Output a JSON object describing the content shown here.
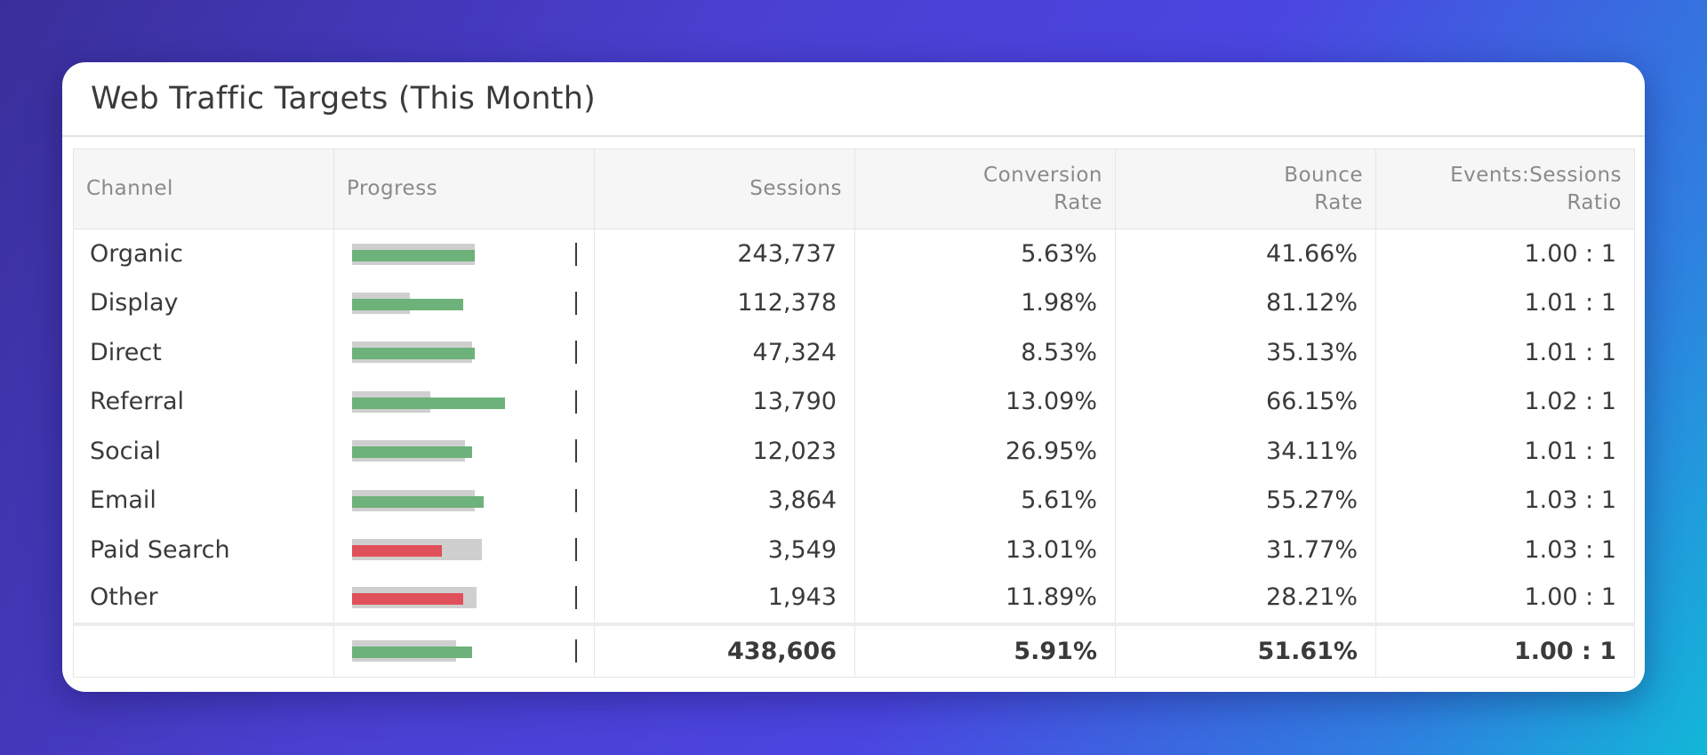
{
  "title": "Web Traffic Targets (This Month)",
  "columns": {
    "channel": "Channel",
    "progress": "Progress",
    "sessions": "Sessions",
    "conversion_1": "Conversion",
    "conversion_2": "Rate",
    "bounce_1": "Bounce",
    "bounce_2": "Rate",
    "ratio_1": "Events:Sessions",
    "ratio_2": "Ratio"
  },
  "colors": {
    "on_track": "#6db27a",
    "below_target": "#e0505a",
    "target_band": "#cfcfcf"
  },
  "rows": [
    {
      "channel": "Organic",
      "sessions": "243,737",
      "conversion_rate": "5.63%",
      "bounce_rate": "41.66%",
      "ratio": "1.00 : 1",
      "progress": {
        "target": 0.53,
        "actual": 0.53,
        "status": "on_track"
      }
    },
    {
      "channel": "Display",
      "sessions": "112,378",
      "conversion_rate": "1.98%",
      "bounce_rate": "81.12%",
      "ratio": "1.01 : 1",
      "progress": {
        "target": 0.25,
        "actual": 0.48,
        "status": "on_track"
      }
    },
    {
      "channel": "Direct",
      "sessions": "47,324",
      "conversion_rate": "8.53%",
      "bounce_rate": "35.13%",
      "ratio": "1.01 : 1",
      "progress": {
        "target": 0.52,
        "actual": 0.53,
        "status": "on_track"
      }
    },
    {
      "channel": "Referral",
      "sessions": "13,790",
      "conversion_rate": "13.09%",
      "bounce_rate": "66.15%",
      "ratio": "1.02 : 1",
      "progress": {
        "target": 0.34,
        "actual": 0.66,
        "status": "on_track"
      }
    },
    {
      "channel": "Social",
      "sessions": "12,023",
      "conversion_rate": "26.95%",
      "bounce_rate": "34.11%",
      "ratio": "1.01 : 1",
      "progress": {
        "target": 0.49,
        "actual": 0.52,
        "status": "on_track"
      }
    },
    {
      "channel": "Email",
      "sessions": "3,864",
      "conversion_rate": "5.61%",
      "bounce_rate": "55.27%",
      "ratio": "1.03 : 1",
      "progress": {
        "target": 0.53,
        "actual": 0.57,
        "status": "on_track"
      }
    },
    {
      "channel": "Paid Search",
      "sessions": "3,549",
      "conversion_rate": "13.01%",
      "bounce_rate": "31.77%",
      "ratio": "1.03 : 1",
      "progress": {
        "target": 0.56,
        "actual": 0.39,
        "status": "below_target"
      }
    },
    {
      "channel": "Other",
      "sessions": "1,943",
      "conversion_rate": "11.89%",
      "bounce_rate": "28.21%",
      "ratio": "1.00 : 1",
      "progress": {
        "target": 0.54,
        "actual": 0.48,
        "status": "below_target"
      }
    }
  ],
  "total": {
    "channel": "",
    "sessions": "438,606",
    "conversion_rate": "5.91%",
    "bounce_rate": "51.61%",
    "ratio": "1.00 : 1",
    "progress": {
      "target": 0.45,
      "actual": 0.52,
      "status": "on_track"
    }
  }
}
